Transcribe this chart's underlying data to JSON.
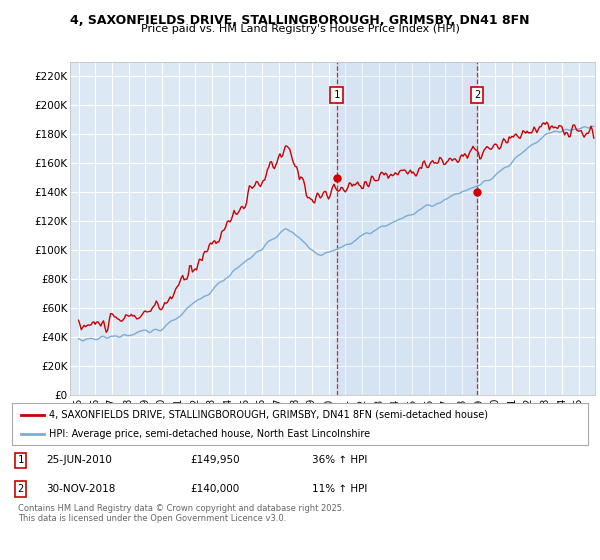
{
  "title_line1": "4, SAXONFIELDS DRIVE, STALLINGBOROUGH, GRIMSBY, DN41 8FN",
  "title_line2": "Price paid vs. HM Land Registry's House Price Index (HPI)",
  "background_color": "#ffffff",
  "plot_bg_color": "#dde8f5",
  "grid_color": "#ffffff",
  "red_line_color": "#cc0000",
  "blue_line_color": "#7aadd4",
  "sale1_x": 2010.49,
  "sale1_y": 149950,
  "sale1_label": "1",
  "sale2_x": 2018.92,
  "sale2_y": 140000,
  "sale2_label": "2",
  "ylim": [
    0,
    230000
  ],
  "xlim": [
    1994.5,
    2026.0
  ],
  "yticks": [
    0,
    20000,
    40000,
    60000,
    80000,
    100000,
    120000,
    140000,
    160000,
    180000,
    200000,
    220000
  ],
  "ytick_labels": [
    "£0",
    "£20K",
    "£40K",
    "£60K",
    "£80K",
    "£100K",
    "£120K",
    "£140K",
    "£160K",
    "£180K",
    "£200K",
    "£220K"
  ],
  "legend_red_label": "4, SAXONFIELDS DRIVE, STALLINGBOROUGH, GRIMSBY, DN41 8FN (semi-detached house)",
  "legend_blue_label": "HPI: Average price, semi-detached house, North East Lincolnshire",
  "annotation1_date": "25-JUN-2010",
  "annotation1_price": "£149,950",
  "annotation1_hpi": "36% ↑ HPI",
  "annotation2_date": "30-NOV-2018",
  "annotation2_price": "£140,000",
  "annotation2_hpi": "11% ↑ HPI",
  "footnote": "Contains HM Land Registry data © Crown copyright and database right 2025.\nThis data is licensed under the Open Government Licence v3.0."
}
